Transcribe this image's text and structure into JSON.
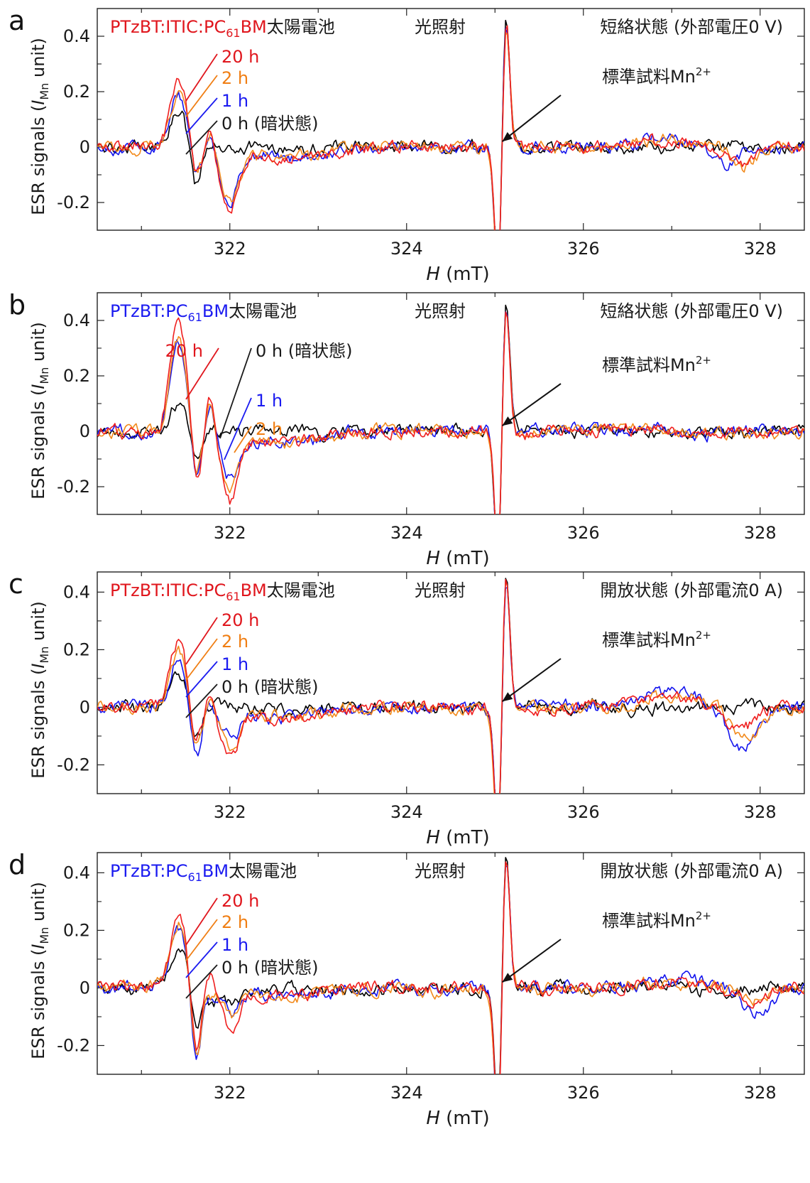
{
  "figure": {
    "xlabel": "H (mT)",
    "xlabel_italic": "H",
    "xlabel_unit": "(mT)",
    "ylabel": "ESR signals (IMn unit)",
    "ylabel_parts": {
      "pre": "ESR signals (",
      "italic": "I",
      "sub": "Mn",
      "post": " unit)"
    }
  },
  "chart_data": [
    {
      "panel": "a",
      "type": "line",
      "title_parts": [
        {
          "text": "PTzBT:ITIC:PC",
          "color": "#e0161d"
        },
        {
          "text": "61",
          "color": "#e0161d",
          "sub": true
        },
        {
          "text": "BM",
          "color": "#e0161d"
        },
        {
          "text": "太陽電池",
          "color": "#1a1a1a"
        }
      ],
      "title": "PTzBT:ITIC:PC61BM太陽電池",
      "header_center": "光照射",
      "header_right": "短絡状態 (外部電圧0 V)",
      "xlim": [
        320.5,
        328.5
      ],
      "ylim": [
        -0.3,
        0.5
      ],
      "xticks": [
        "322",
        "324",
        "326",
        "328"
      ],
      "yticks": [
        "0.4",
        "0.2",
        "0",
        "-0.2"
      ],
      "ref_label": "標準試料Mn2+",
      "ref_label_parts": {
        "base": "標準試料Mn",
        "sup": "2+"
      },
      "series": [
        {
          "name": "0 h (暗状態)",
          "label_color": "#1a1a1a",
          "color": "#000000",
          "features": {
            "pos_amp": 0.13,
            "neg_amp": -0.15,
            "second_pos": 0.0,
            "second_neg": 0.0,
            "tail": 0.0,
            "high_field_dip": 0.0,
            "high_field_center": 327.5
          }
        },
        {
          "name": "1 h",
          "label_color": "#1b1bf0",
          "color": "#1414ee",
          "features": {
            "pos_amp": 0.18,
            "neg_amp": -0.11,
            "second_pos": 0.08,
            "second_neg": -0.18,
            "tail": 0.12,
            "high_field_dip": -0.06,
            "high_field_center": 327.6
          }
        },
        {
          "name": "2 h",
          "label_color": "#f07e13",
          "color": "#f28a1c",
          "features": {
            "pos_amp": 0.21,
            "neg_amp": -0.1,
            "second_pos": 0.07,
            "second_neg": -0.19,
            "tail": 0.12,
            "high_field_dip": -0.07,
            "high_field_center": 327.8
          }
        },
        {
          "name": "20 h",
          "label_color": "#e0161d",
          "color": "#ef1f1f",
          "features": {
            "pos_amp": 0.25,
            "neg_amp": -0.11,
            "second_pos": 0.07,
            "second_neg": -0.21,
            "tail": 0.12,
            "high_field_dip": -0.06,
            "high_field_center": 327.8
          }
        }
      ],
      "mn_peak": 0.49,
      "mn_min": -0.3
    },
    {
      "panel": "b",
      "type": "line",
      "title_parts": [
        {
          "text": "PTzBT:PC",
          "color": "#1b1bf0"
        },
        {
          "text": "61",
          "color": "#1b1bf0",
          "sub": true
        },
        {
          "text": "BM",
          "color": "#1b1bf0"
        },
        {
          "text": "太陽電池",
          "color": "#1a1a1a"
        }
      ],
      "title": "PTzBT:PC61BM太陽電池",
      "header_center": "光照射",
      "header_right": "短絡状態 (外部電圧0 V)",
      "xlim": [
        320.5,
        328.5
      ],
      "ylim": [
        -0.3,
        0.5
      ],
      "xticks": [
        "322",
        "324",
        "326",
        "328"
      ],
      "yticks": [
        "0.4",
        "0.2",
        "0",
        "-0.2"
      ],
      "ref_label": "標準試料Mn2+",
      "ref_label_parts": {
        "base": "標準試料Mn",
        "sup": "2+"
      },
      "series": [
        {
          "name": "0 h (暗状態)",
          "label_color": "#1a1a1a",
          "color": "#000000",
          "features": {
            "pos_amp": 0.1,
            "neg_amp": -0.08,
            "second_pos": 0.0,
            "second_neg": 0.0,
            "tail": 0.0,
            "high_field_dip": 0.0,
            "high_field_center": 327.5
          }
        },
        {
          "name": "1 h",
          "label_color": "#1b1bf0",
          "color": "#1414ee",
          "features": {
            "pos_amp": 0.33,
            "neg_amp": -0.17,
            "second_pos": 0.12,
            "second_neg": -0.16,
            "tail": 0.12,
            "high_field_dip": -0.02,
            "high_field_center": 327.3
          }
        },
        {
          "name": "2 h",
          "label_color": "#f07e13",
          "color": "#f28a1c",
          "features": {
            "pos_amp": 0.33,
            "neg_amp": -0.17,
            "second_pos": 0.12,
            "second_neg": -0.2,
            "tail": 0.12,
            "high_field_dip": -0.02,
            "high_field_center": 327.3
          }
        },
        {
          "name": "20 h",
          "label_color": "#e0161d",
          "color": "#ef1f1f",
          "features": {
            "pos_amp": 0.42,
            "neg_amp": -0.18,
            "second_pos": 0.15,
            "second_neg": -0.23,
            "tail": 0.12,
            "high_field_dip": -0.02,
            "high_field_center": 327.3
          }
        }
      ],
      "mn_peak": 0.48,
      "mn_min": -0.3
    },
    {
      "panel": "c",
      "type": "line",
      "title_parts": [
        {
          "text": "PTzBT:ITIC:PC",
          "color": "#e0161d"
        },
        {
          "text": "61",
          "color": "#e0161d",
          "sub": true
        },
        {
          "text": "BM",
          "color": "#e0161d"
        },
        {
          "text": "太陽電池",
          "color": "#1a1a1a"
        }
      ],
      "title": "PTzBT:ITIC:PC61BM太陽電池",
      "header_center": "光照射",
      "header_right": "開放状態 (外部電流0 A)",
      "xlim": [
        320.5,
        328.5
      ],
      "ylim": [
        -0.3,
        0.47
      ],
      "xticks": [
        "322",
        "324",
        "326",
        "328"
      ],
      "yticks": [
        "0.4",
        "0.2",
        "0",
        "-0.2"
      ],
      "ref_label": "標準試料Mn2+",
      "ref_label_parts": {
        "base": "標準試料Mn",
        "sup": "2+"
      },
      "series": [
        {
          "name": "0 h (暗状態)",
          "label_color": "#1a1a1a",
          "color": "#000000",
          "features": {
            "pos_amp": 0.12,
            "neg_amp": -0.12,
            "second_pos": 0.0,
            "second_neg": 0.0,
            "tail": 0.0,
            "high_field_dip": 0.0,
            "high_field_center": 327.8
          }
        },
        {
          "name": "1 h",
          "label_color": "#1b1bf0",
          "color": "#1414ee",
          "features": {
            "pos_amp": 0.18,
            "neg_amp": -0.18,
            "second_pos": 0.02,
            "second_neg": -0.1,
            "tail": 0.1,
            "high_field_dip": -0.16,
            "high_field_center": 327.8
          }
        },
        {
          "name": "2 h",
          "label_color": "#f07e13",
          "color": "#f28a1c",
          "features": {
            "pos_amp": 0.2,
            "neg_amp": -0.14,
            "second_pos": 0.03,
            "second_neg": -0.12,
            "tail": 0.1,
            "high_field_dip": -0.12,
            "high_field_center": 327.85
          }
        },
        {
          "name": "20 h",
          "label_color": "#e0161d",
          "color": "#ef1f1f",
          "features": {
            "pos_amp": 0.23,
            "neg_amp": -0.13,
            "second_pos": 0.05,
            "second_neg": -0.15,
            "tail": 0.1,
            "high_field_dip": -0.08,
            "high_field_center": 327.8
          }
        }
      ],
      "mn_peak": 0.47,
      "mn_min": -0.3
    },
    {
      "panel": "d",
      "type": "line",
      "title_parts": [
        {
          "text": "PTzBT:PC",
          "color": "#1b1bf0"
        },
        {
          "text": "61",
          "color": "#1b1bf0",
          "sub": true
        },
        {
          "text": "BM",
          "color": "#1b1bf0"
        },
        {
          "text": "太陽電池",
          "color": "#1a1a1a"
        }
      ],
      "title": "PTzBT:PC61BM太陽電池",
      "header_center": "光照射",
      "header_right": "開放状態 (外部電流0 A)",
      "xlim": [
        320.5,
        328.5
      ],
      "ylim": [
        -0.3,
        0.47
      ],
      "xticks": [
        "322",
        "324",
        "326",
        "328"
      ],
      "yticks": [
        "0.4",
        "0.2",
        "0",
        "-0.2"
      ],
      "ref_label": "標準試料Mn2+",
      "ref_label_parts": {
        "base": "標準試料Mn",
        "sup": "2+"
      },
      "series": [
        {
          "name": "0 h (暗状態)",
          "label_color": "#1a1a1a",
          "color": "#000000",
          "features": {
            "pos_amp": 0.13,
            "neg_amp": -0.15,
            "second_pos": -0.05,
            "second_neg": -0.05,
            "tail": 0.03,
            "high_field_dip": -0.02,
            "high_field_center": 327.5
          }
        },
        {
          "name": "1 h",
          "label_color": "#1b1bf0",
          "color": "#1414ee",
          "features": {
            "pos_amp": 0.2,
            "neg_amp": -0.26,
            "second_pos": -0.03,
            "second_neg": -0.07,
            "tail": 0.06,
            "high_field_dip": -0.09,
            "high_field_center": 327.95
          }
        },
        {
          "name": "2 h",
          "label_color": "#f07e13",
          "color": "#f28a1c",
          "features": {
            "pos_amp": 0.22,
            "neg_amp": -0.24,
            "second_pos": -0.02,
            "second_neg": -0.09,
            "tail": 0.06,
            "high_field_dip": -0.05,
            "high_field_center": 327.9
          }
        },
        {
          "name": "20 h",
          "label_color": "#e0161d",
          "color": "#ef1f1f",
          "features": {
            "pos_amp": 0.25,
            "neg_amp": -0.23,
            "second_pos": 0.05,
            "second_neg": -0.13,
            "tail": 0.06,
            "high_field_dip": -0.04,
            "high_field_center": 327.9
          }
        }
      ],
      "mn_peak": 0.47,
      "mn_min": -0.3
    }
  ]
}
